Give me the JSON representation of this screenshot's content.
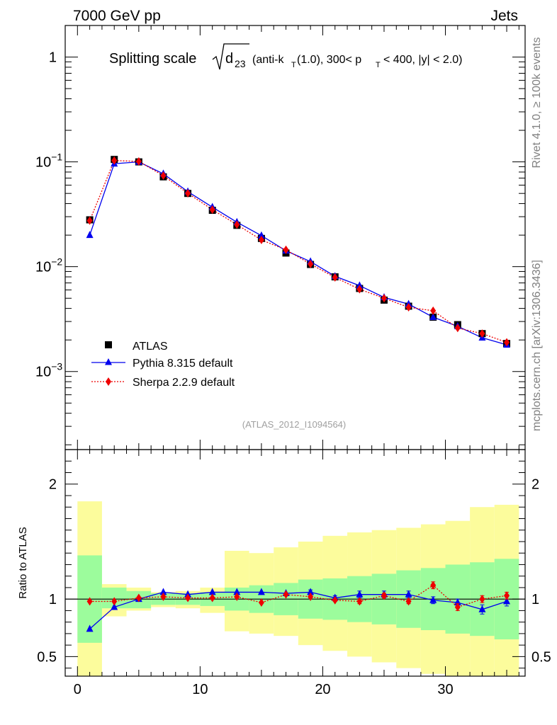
{
  "header": {
    "left": "7000 GeV pp",
    "right": "Jets"
  },
  "side_labels": {
    "rivet": "Rivet 4.1.0, ≥ 100k events",
    "mcplots": "mcplots.cern.ch [arXiv:1306.3436]"
  },
  "chart_data": [
    {
      "type": "line",
      "scale": "log",
      "title_parts": {
        "prefix": "Splitting scale",
        "d": "d",
        "sub": "23",
        "mid1": "(anti-k",
        "sub2": "T",
        "mid2": "(1.0), 300< p",
        "sub3": "T",
        "suffix": "< 400, |y| < 2.0)"
      },
      "analysis_label": "(ATLAS_2012_I1094564)",
      "xlim": [
        -1,
        36.5
      ],
      "ylim": [
        0.00018,
        2.0
      ],
      "y_ticks": [
        {
          "value": 1,
          "label": "1"
        },
        {
          "value": 0.1,
          "label": "10",
          "exp": "−1"
        },
        {
          "value": 0.01,
          "label": "10",
          "exp": "−2"
        },
        {
          "value": 0.001,
          "label": "10",
          "exp": "−3"
        }
      ],
      "x": [
        1,
        3,
        5,
        7,
        9,
        11,
        13,
        15,
        17,
        19,
        21,
        23,
        25,
        27,
        29,
        31,
        33,
        35
      ],
      "series": [
        {
          "name": "ATLAS",
          "color": "#000000",
          "marker": "square",
          "values": [
            0.028,
            0.1055,
            0.1,
            0.072,
            0.05,
            0.0345,
            0.0248,
            0.0186,
            0.0135,
            0.0105,
            0.008,
            0.0062,
            0.0048,
            0.0042,
            0.0033,
            0.0028,
            0.0023,
            0.00185
          ]
        },
        {
          "name": "Pythia 8.315 default",
          "color": "#0000ee",
          "marker": "triangle",
          "line": "solid",
          "values": [
            0.02,
            0.096,
            0.1,
            0.077,
            0.052,
            0.037,
            0.0266,
            0.0198,
            0.0142,
            0.0112,
            0.0081,
            0.0066,
            0.0051,
            0.0044,
            0.0033,
            0.0027,
            0.0021,
            0.0018
          ]
        },
        {
          "name": "Sherpa 2.2.9 default",
          "color": "#ee0000",
          "marker": "diamond",
          "line": "dotted",
          "values": [
            0.0275,
            0.103,
            0.101,
            0.074,
            0.0502,
            0.035,
            0.0252,
            0.018,
            0.0145,
            0.0106,
            0.0079,
            0.0061,
            0.005,
            0.0041,
            0.0038,
            0.0026,
            0.0023,
            0.0019
          ]
        }
      ]
    },
    {
      "type": "line",
      "ylabel": "Ratio to ATLAS",
      "xlim": [
        -1,
        36.5
      ],
      "ylim": [
        0.33,
        2.3
      ],
      "x_ticks": [
        0,
        10,
        20,
        30
      ],
      "y_ticks": [
        {
          "value": 0.5,
          "label": "0.5"
        },
        {
          "value": 1,
          "label": "1"
        },
        {
          "value": 2,
          "label": "2"
        }
      ],
      "bands": {
        "edges": [
          0,
          2,
          4,
          6,
          8,
          10,
          12,
          14,
          16,
          18,
          20,
          22,
          24,
          26,
          28,
          30,
          32,
          34,
          36
        ],
        "inner_color": "#9cfc9c",
        "outer_color": "#fcfc9c",
        "inner_low": [
          0.62,
          0.92,
          0.92,
          0.95,
          0.95,
          0.94,
          0.9,
          0.88,
          0.86,
          0.83,
          0.82,
          0.8,
          0.78,
          0.75,
          0.73,
          0.7,
          0.68,
          0.65
        ],
        "inner_high": [
          1.38,
          1.1,
          1.07,
          1.05,
          1.05,
          1.06,
          1.1,
          1.12,
          1.14,
          1.17,
          1.18,
          1.2,
          1.22,
          1.25,
          1.27,
          1.3,
          1.32,
          1.35
        ],
        "outer_low": [
          0.0,
          0.85,
          0.9,
          0.93,
          0.92,
          0.88,
          0.72,
          0.7,
          0.68,
          0.6,
          0.55,
          0.5,
          0.45,
          0.4,
          0.35,
          0.3,
          0.2,
          0.15
        ],
        "outer_high": [
          1.85,
          1.13,
          1.1,
          1.06,
          1.07,
          1.1,
          1.42,
          1.4,
          1.45,
          1.5,
          1.55,
          1.58,
          1.6,
          1.62,
          1.65,
          1.68,
          1.8,
          1.82
        ]
      },
      "series": [
        {
          "name": "Pythia 8.315 default",
          "color": "#0000ee",
          "marker": "triangle",
          "line": "solid",
          "values": [
            0.74,
            0.93,
            1.0,
            1.06,
            1.04,
            1.06,
            1.06,
            1.06,
            1.05,
            1.06,
            1.01,
            1.04,
            1.04,
            1.04,
            0.99,
            0.97,
            0.91,
            0.98
          ],
          "errors": [
            0.0,
            0.0,
            0.0,
            0.0,
            0.0,
            0.0,
            0.0,
            0.0,
            0.0,
            0.02,
            0.02,
            0.03,
            0.03,
            0.03,
            0.03,
            0.03,
            0.04,
            0.04
          ]
        },
        {
          "name": "Sherpa 2.2.9 default",
          "color": "#ee0000",
          "marker": "diamond",
          "line": "dotted",
          "values": [
            0.98,
            0.98,
            1.01,
            1.02,
            1.01,
            1.01,
            1.02,
            0.97,
            1.04,
            1.02,
            0.99,
            0.98,
            1.03,
            0.98,
            1.12,
            0.93,
            1.0,
            1.03
          ],
          "errors": [
            0.0,
            0.0,
            0.0,
            0.0,
            0.0,
            0.0,
            0.0,
            0.0,
            0.0,
            0.01,
            0.01,
            0.02,
            0.02,
            0.02,
            0.03,
            0.03,
            0.03,
            0.03
          ]
        }
      ]
    }
  ]
}
